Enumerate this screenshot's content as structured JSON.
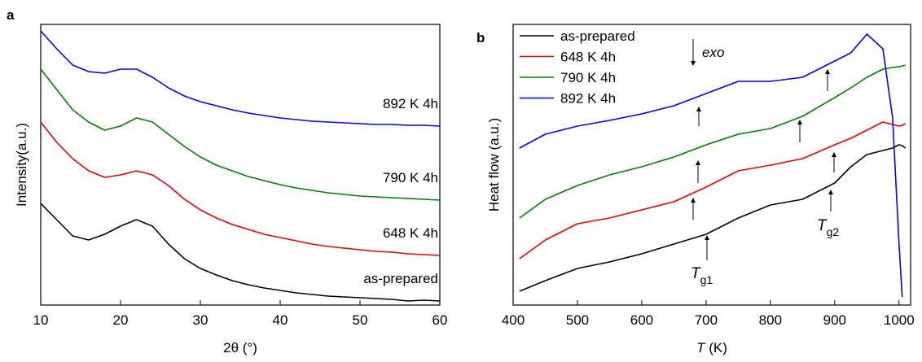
{
  "chart_data": [
    {
      "type": "line",
      "panel_label": "a",
      "x_label": "2θ (°)",
      "y_label": "Intensity(a.u.)",
      "xlim": [
        10,
        60
      ],
      "xticks": [
        10,
        20,
        30,
        40,
        50,
        60
      ],
      "ylim": [
        0,
        345
      ],
      "legend": "inline",
      "x": [
        10,
        12,
        14,
        16,
        18,
        20,
        22,
        24,
        26,
        28,
        30,
        32,
        34,
        36,
        38,
        40,
        42,
        44,
        46,
        48,
        50,
        52,
        54,
        56,
        58,
        60
      ],
      "series": [
        {
          "name": "as-prepared",
          "color": "#000000",
          "values": [
            125,
            105,
            85,
            80,
            87,
            97,
            105,
            97,
            75,
            57,
            45,
            37,
            30,
            25,
            21,
            18,
            15,
            13,
            11,
            10,
            9,
            8,
            7,
            5,
            6,
            5
          ]
        },
        {
          "name": "648 K 4h",
          "color": "#ee0000",
          "values": [
            225,
            200,
            180,
            165,
            157,
            160,
            165,
            160,
            147,
            130,
            117,
            107,
            99,
            93,
            87,
            83,
            79,
            75,
            72,
            70,
            68,
            66,
            65,
            63,
            62,
            61
          ]
        },
        {
          "name": "790 K 4h",
          "color": "#008000",
          "values": [
            290,
            265,
            240,
            225,
            215,
            220,
            230,
            225,
            210,
            195,
            182,
            172,
            165,
            158,
            153,
            148,
            144,
            141,
            138,
            136,
            134,
            133,
            132,
            131,
            130,
            129
          ]
        },
        {
          "name": "892 K 4h",
          "color": "#0000ff",
          "values": [
            337,
            315,
            295,
            287,
            285,
            290,
            290,
            280,
            267,
            257,
            250,
            245,
            240,
            236,
            233,
            230,
            228,
            226,
            225,
            224,
            223,
            222,
            222,
            221,
            221,
            220
          ]
        }
      ]
    },
    {
      "type": "line",
      "panel_label": "b",
      "x_label": {
        "italic": "T",
        "text": " (K)"
      },
      "y_label": "Heat flow (a.u.)",
      "xlim": [
        400,
        1018
      ],
      "xticks": [
        400,
        500,
        600,
        700,
        800,
        900,
        1000
      ],
      "ylim": [
        0,
        345
      ],
      "legend": "upper left",
      "x": [
        410,
        450,
        500,
        550,
        600,
        650,
        700,
        750,
        800,
        850,
        900,
        925,
        950,
        975,
        990,
        1000,
        1005,
        1010
      ],
      "series": [
        {
          "name": "as-prepared",
          "color": "#000000",
          "values": [
            17,
            30,
            45,
            53,
            63,
            75,
            87,
            107,
            123,
            130,
            150,
            170,
            185,
            190,
            193,
            197,
            196,
            193
          ]
        },
        {
          "name": "648 K 4h",
          "color": "#ee0000",
          "values": [
            57,
            80,
            100,
            107,
            117,
            127,
            145,
            165,
            172,
            180,
            197,
            205,
            215,
            225,
            222,
            220,
            221,
            223
          ]
        },
        {
          "name": "790 K 4h",
          "color": "#008000",
          "values": [
            107,
            130,
            147,
            160,
            170,
            182,
            197,
            210,
            217,
            232,
            255,
            267,
            280,
            290,
            292,
            293,
            294,
            295
          ]
        },
        {
          "name": "892 K 4h",
          "color": "#0000ff",
          "values": [
            193,
            210,
            220,
            227,
            235,
            245,
            260,
            275,
            275,
            280,
            300,
            310,
            333,
            315,
            230,
            75,
            10,
            null
          ]
        }
      ],
      "annotations": {
        "exo": "exo",
        "tg1": {
          "symbol": "T",
          "subscript": "g1"
        },
        "tg2": {
          "symbol": "T",
          "subscript": "g2"
        }
      }
    }
  ]
}
